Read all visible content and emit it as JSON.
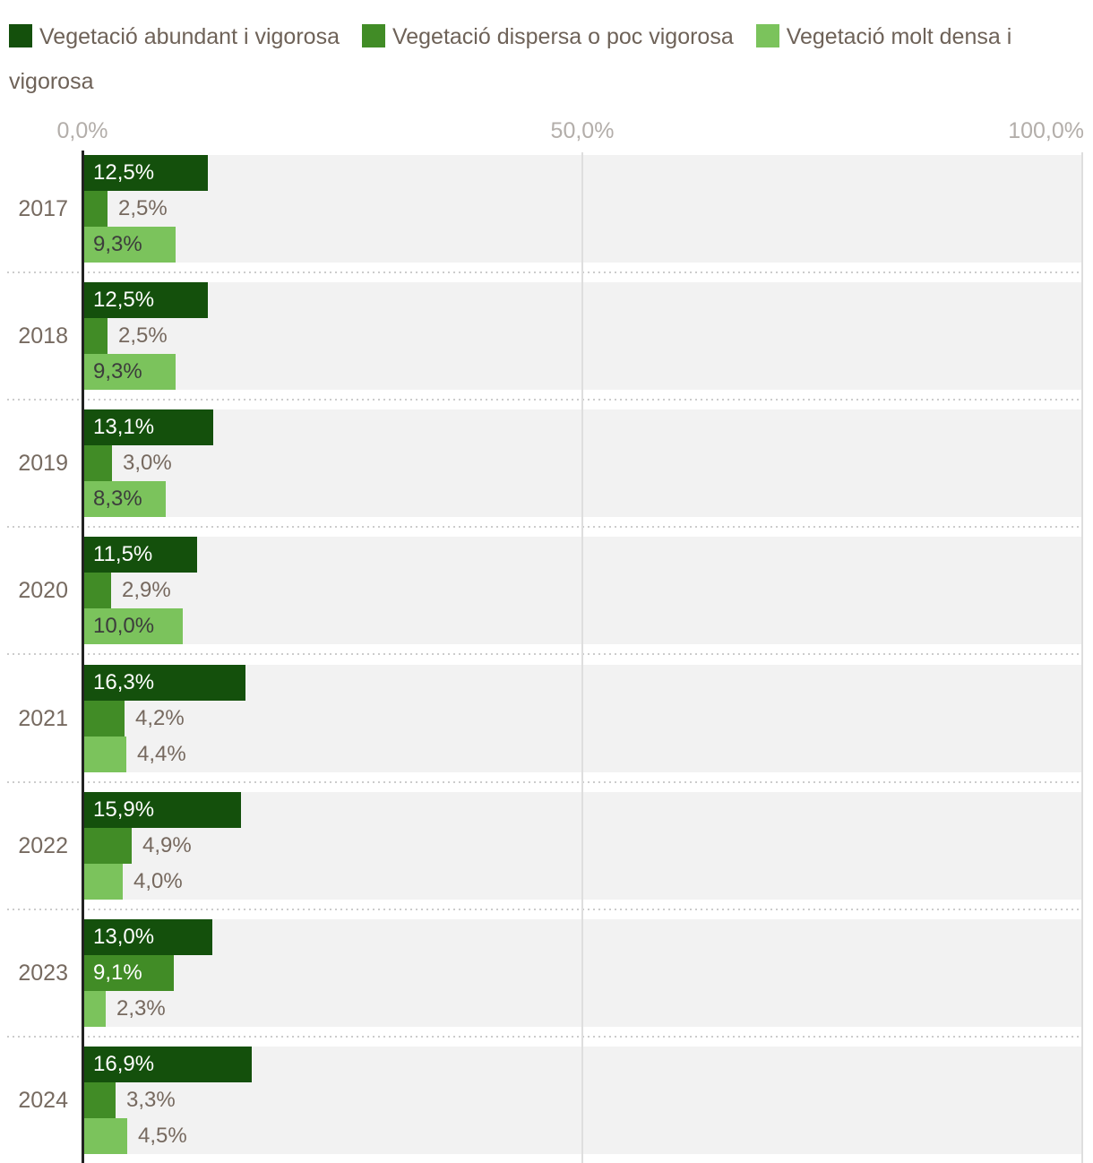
{
  "legend": {
    "items": [
      {
        "label": "Vegetació abundant i vigorosa"
      },
      {
        "label": "Vegetació dispersa o poc vigorosa"
      },
      {
        "label": "Vegetació molt densa i vigorosa"
      }
    ]
  },
  "axis": {
    "ticks": [
      {
        "label": "0,0%",
        "value": 0
      },
      {
        "label": "50,0%",
        "value": 50
      },
      {
        "label": "100,0%",
        "value": 100
      }
    ]
  },
  "chart_data": {
    "type": "bar",
    "orientation": "horizontal",
    "categories": [
      "2017",
      "2018",
      "2019",
      "2020",
      "2021",
      "2022",
      "2023",
      "2024"
    ],
    "series": [
      {
        "name": "Vegetació abundant i vigorosa",
        "key": "vegetacio-abundant",
        "color": "#14500c",
        "values": [
          12.5,
          12.5,
          13.1,
          11.5,
          16.3,
          15.9,
          13.0,
          16.9
        ],
        "labels": [
          "12,5%",
          "12,5%",
          "13,1%",
          "11,5%",
          "16,3%",
          "15,9%",
          "13,0%",
          "16,9%"
        ]
      },
      {
        "name": "Vegetació dispersa o poc vigorosa",
        "key": "vegetacio-dispersa",
        "color": "#418c26",
        "values": [
          2.5,
          2.5,
          3.0,
          2.9,
          4.2,
          4.9,
          9.1,
          3.3
        ],
        "labels": [
          "2,5%",
          "2,5%",
          "3,0%",
          "2,9%",
          "4,2%",
          "4,9%",
          "9,1%",
          "3,3%"
        ]
      },
      {
        "name": "Vegetació molt densa i vigorosa",
        "key": "vegetacio-molt-densa",
        "color": "#7bc35c",
        "values": [
          9.3,
          9.3,
          8.3,
          10.0,
          4.4,
          4.0,
          2.3,
          4.5
        ],
        "labels": [
          "9,3%",
          "9,3%",
          "8,3%",
          "10,0%",
          "4,4%",
          "4,0%",
          "2,3%",
          "4,5%"
        ]
      }
    ],
    "xlim": [
      0,
      100
    ],
    "x_ticks": [
      "0,0%",
      "50,0%",
      "100,0%"
    ],
    "legend_position": "top",
    "grid": "vertical"
  },
  "colors": {
    "plot_band_bg": "#f2f2f2",
    "gridline": "#dedede",
    "axis_line": "#222222",
    "separator_dots": "#cccccc",
    "label_outside": "#76695f",
    "label_inside_on_light": "#3c3c3c",
    "label_inside_on_dark": "#ffffff",
    "tick_label": "#b3aeaa",
    "year_label": "#766a60",
    "legend_text": "#6e6258"
  }
}
